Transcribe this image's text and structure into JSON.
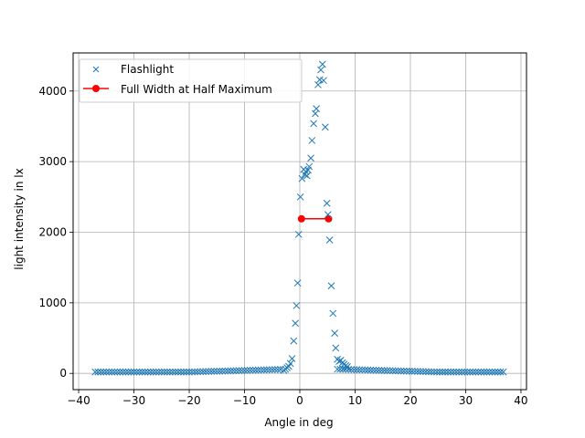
{
  "chart_data": {
    "type": "scatter",
    "xlabel": "Angle in deg",
    "ylabel": "light intensity in lx",
    "xlim": [
      -41,
      41
    ],
    "ylim": [
      -230,
      4540
    ],
    "xticks": [
      -40,
      -30,
      -20,
      -10,
      0,
      10,
      20,
      30,
      40
    ],
    "yticks": [
      0,
      1000,
      2000,
      3000,
      4000
    ],
    "grid": true,
    "legend_position": "top-left",
    "series": [
      {
        "name": "Flashlight",
        "marker": "x",
        "color": "#1f77b4",
        "tail_left": {
          "x_start": -37,
          "x_end": -3.3,
          "step": 0.5,
          "rise_start": -20
        },
        "tail_right": {
          "x_start": 6.8,
          "x_end": 37,
          "step": 0.5,
          "rise_start": 25
        },
        "points": [
          [
            -2.9,
            45
          ],
          [
            -2.6,
            60
          ],
          [
            -2.3,
            80
          ],
          [
            -2.0,
            100
          ],
          [
            -1.7,
            140
          ],
          [
            -1.4,
            210
          ],
          [
            -1.1,
            460
          ],
          [
            -0.8,
            710
          ],
          [
            -0.6,
            960
          ],
          [
            -0.4,
            1280
          ],
          [
            -0.2,
            1970
          ],
          [
            0.1,
            2500
          ],
          [
            0.4,
            2760
          ],
          [
            0.7,
            2890
          ],
          [
            0.9,
            2820
          ],
          [
            1.1,
            2860
          ],
          [
            1.3,
            2800
          ],
          [
            1.5,
            2880
          ],
          [
            1.7,
            2930
          ],
          [
            2.0,
            3050
          ],
          [
            2.2,
            3300
          ],
          [
            2.5,
            3540
          ],
          [
            2.8,
            3680
          ],
          [
            3.0,
            3750
          ],
          [
            3.3,
            4090
          ],
          [
            3.6,
            4160
          ],
          [
            3.8,
            4300
          ],
          [
            4.1,
            4380
          ],
          [
            4.3,
            4150
          ],
          [
            4.6,
            3490
          ],
          [
            4.9,
            2410
          ],
          [
            5.1,
            2250
          ],
          [
            5.4,
            1890
          ],
          [
            5.7,
            1240
          ],
          [
            6.0,
            850
          ],
          [
            6.3,
            570
          ],
          [
            6.5,
            360
          ],
          [
            6.8,
            200
          ],
          [
            7.1,
            170
          ],
          [
            7.4,
            185
          ],
          [
            7.7,
            150
          ],
          [
            8.0,
            130
          ],
          [
            8.3,
            110
          ],
          [
            8.6,
            95
          ]
        ]
      },
      {
        "name": "Full Width at Half Maximum",
        "marker": "o",
        "line": true,
        "color": "#ff0000",
        "points": [
          [
            0.3,
            2190
          ],
          [
            5.2,
            2190
          ]
        ]
      }
    ]
  }
}
